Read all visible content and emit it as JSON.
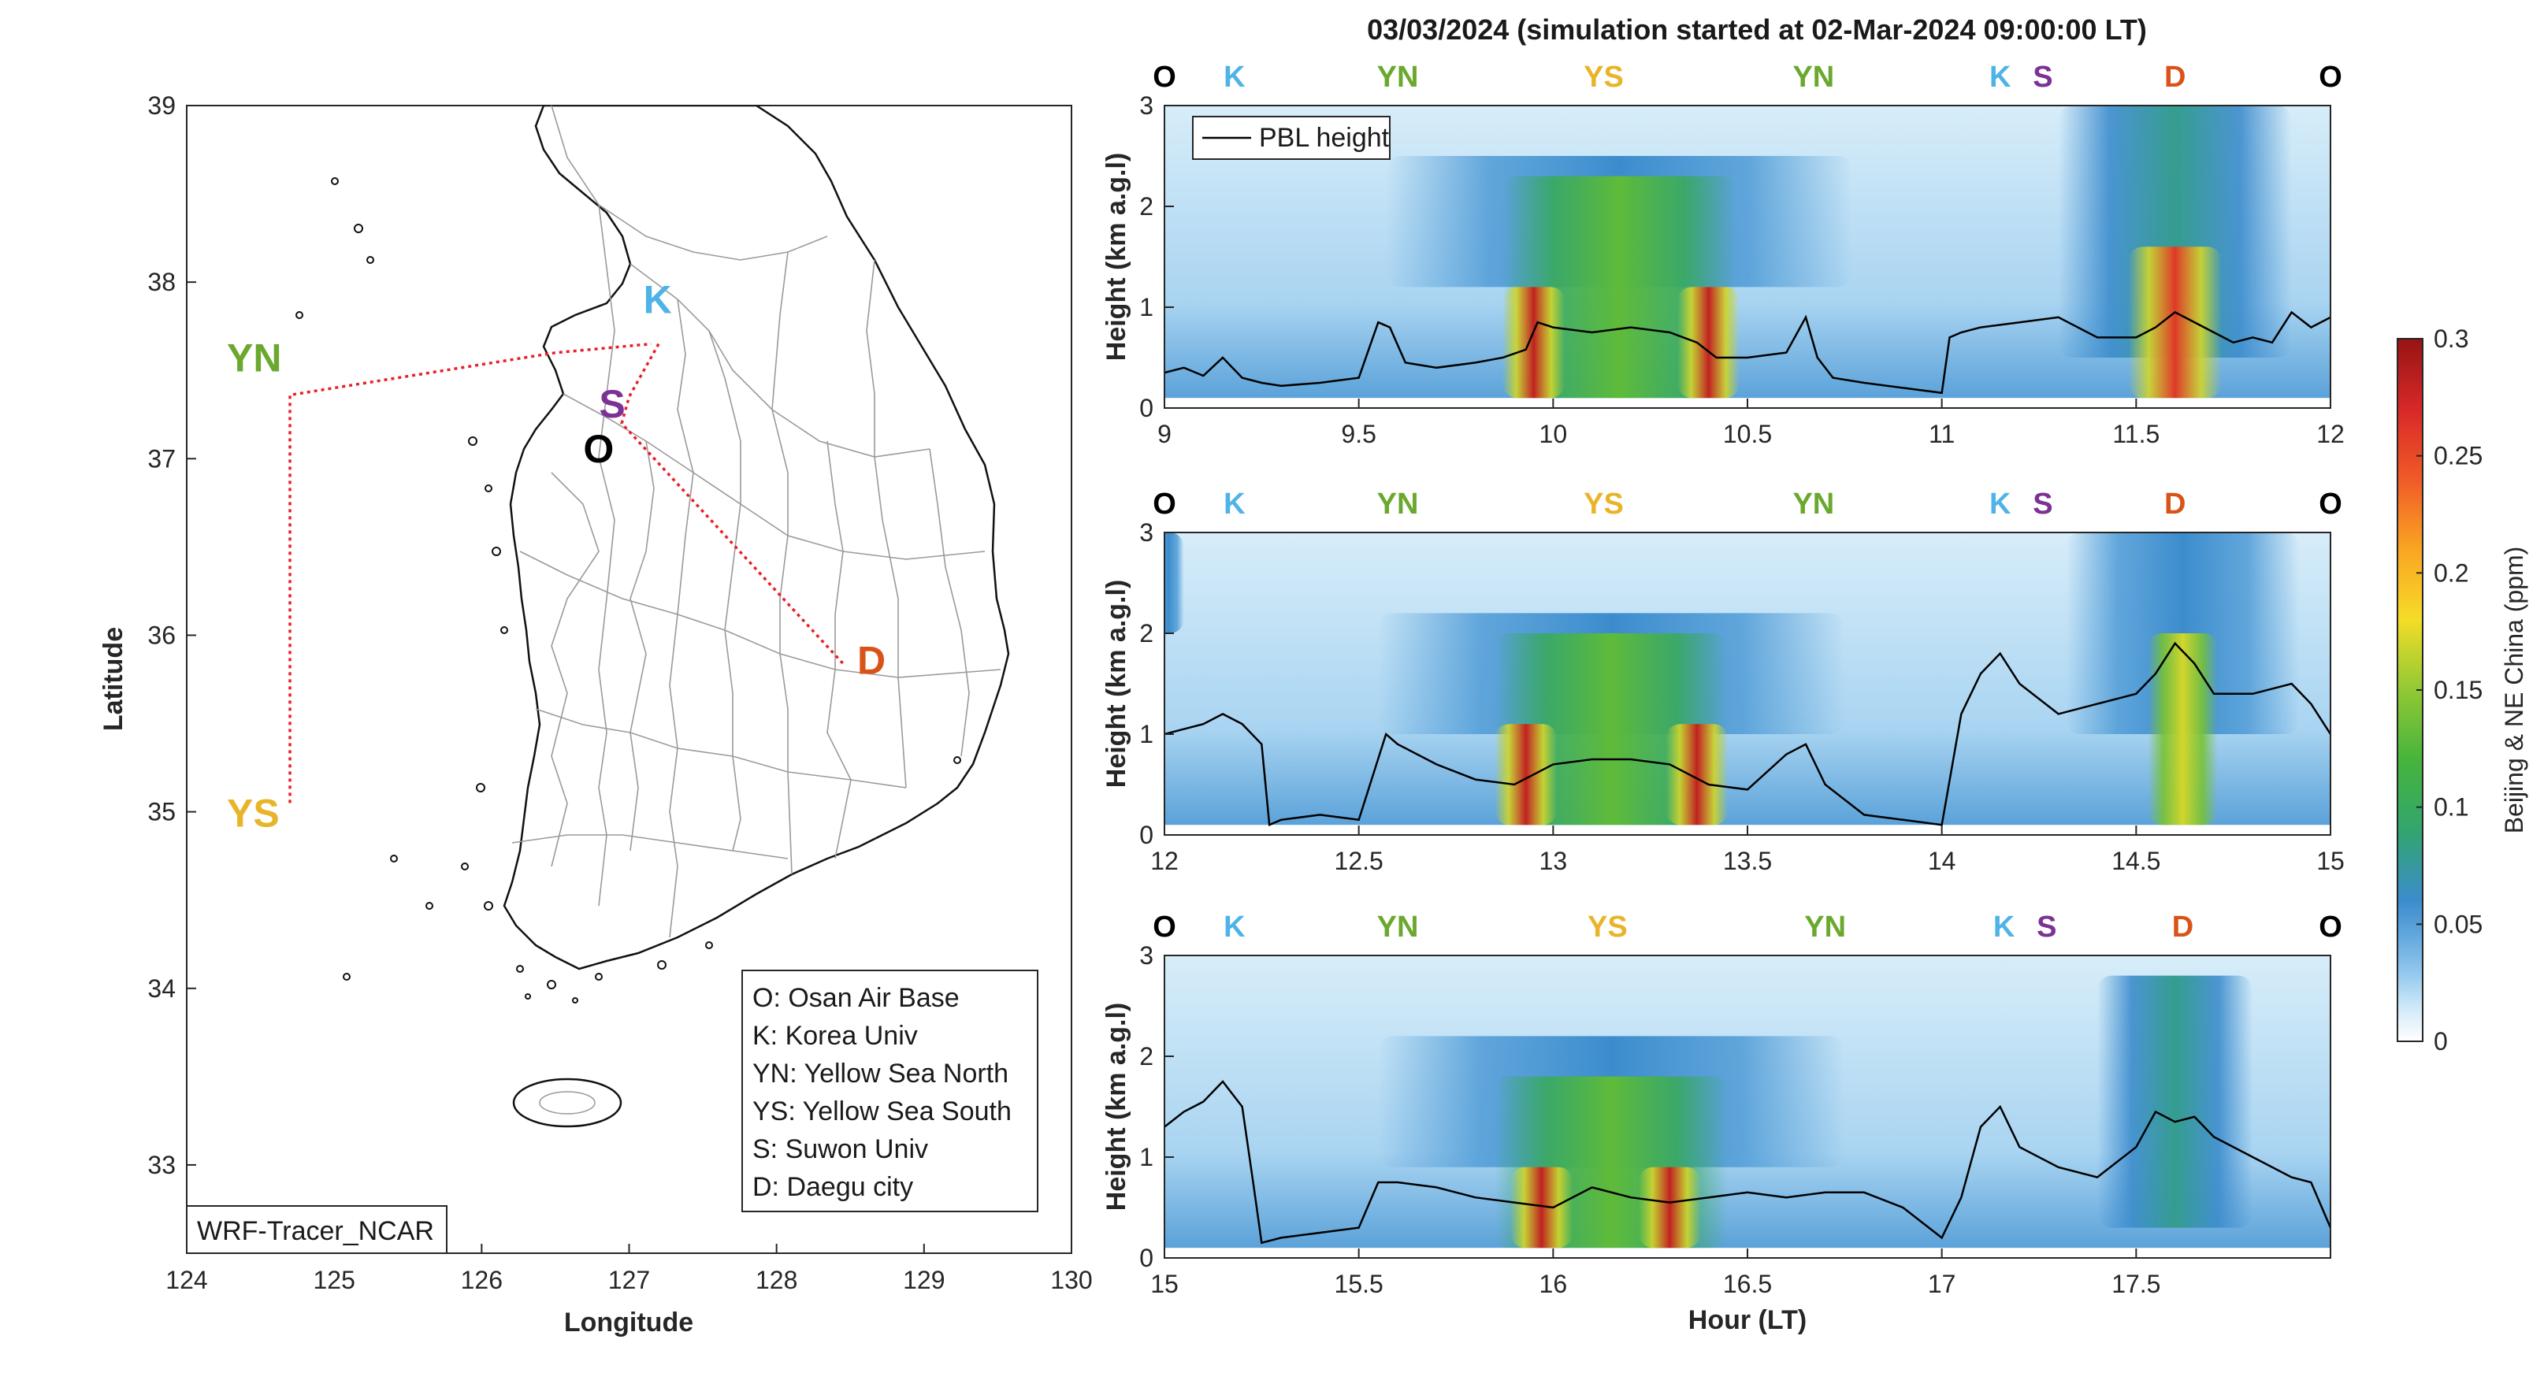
{
  "colors": {
    "O": "#000000",
    "K": "#4eb3e6",
    "YN": "#6aa82e",
    "YS": "#e8b52a",
    "S": "#7b3294",
    "D": "#d95319",
    "track": "#e8202a",
    "pbl": "#000000"
  },
  "figure_title": "03/03/2024 (simulation started at 02-Mar-2024 09:00:00 LT)",
  "map": {
    "xlabel": "Longitude",
    "ylabel": "Latitude",
    "xticks": [
      "124",
      "125",
      "126",
      "127",
      "128",
      "129",
      "130"
    ],
    "yticks": [
      "33",
      "34",
      "35",
      "36",
      "37",
      "38",
      "39"
    ],
    "xlim": [
      124,
      130
    ],
    "ylim": [
      32.5,
      39
    ],
    "model_label": "WRF-Tracer_NCAR",
    "sites": [
      {
        "code": "YN",
        "lon": 124.7,
        "lat": 37.45
      },
      {
        "code": "YS",
        "lon": 124.7,
        "lat": 35.05
      },
      {
        "code": "K",
        "lon": 127.15,
        "lat": 37.78
      },
      {
        "code": "S",
        "lon": 126.93,
        "lat": 37.3
      },
      {
        "code": "O",
        "lon": 126.85,
        "lat": 37.09
      },
      {
        "code": "D",
        "lon": 128.6,
        "lat": 35.87
      }
    ],
    "legend": [
      "O: Osan Air Base",
      "K: Korea Univ",
      "YN: Yellow Sea North",
      "YS: Yellow Sea South",
      "S: Suwon Univ",
      "D: Daegu city"
    ]
  },
  "chart_data": [
    {
      "type": "heatmap",
      "xlabel": "",
      "ylabel": "Height (km a.g.l)",
      "xlim": [
        9,
        12
      ],
      "ylim": [
        0,
        3
      ],
      "xticks": [
        "9",
        "9.5",
        "10",
        "10.5",
        "11",
        "11.5",
        "12"
      ],
      "yticks": [
        "0",
        "1",
        "2",
        "3"
      ],
      "legend": "PBL height",
      "site_markers": [
        {
          "label": "O",
          "x": 9.0
        },
        {
          "label": "K",
          "x": 9.18
        },
        {
          "label": "YN",
          "x": 9.6
        },
        {
          "label": "YS",
          "x": 10.13
        },
        {
          "label": "YN",
          "x": 10.67
        },
        {
          "label": "K",
          "x": 11.15
        },
        {
          "label": "S",
          "x": 11.26
        },
        {
          "label": "D",
          "x": 11.6
        },
        {
          "label": "O",
          "x": 12.0
        }
      ],
      "pbl_height": {
        "x": [
          9.0,
          9.05,
          9.1,
          9.15,
          9.2,
          9.25,
          9.3,
          9.4,
          9.5,
          9.55,
          9.58,
          9.62,
          9.7,
          9.8,
          9.87,
          9.93,
          9.96,
          10.0,
          10.1,
          10.2,
          10.3,
          10.37,
          10.42,
          10.5,
          10.6,
          10.65,
          10.68,
          10.72,
          10.8,
          10.9,
          11.0,
          11.02,
          11.05,
          11.1,
          11.2,
          11.3,
          11.4,
          11.5,
          11.55,
          11.6,
          11.7,
          11.75,
          11.8,
          11.85,
          11.9,
          11.95,
          12.0
        ],
        "y": [
          0.35,
          0.4,
          0.32,
          0.5,
          0.3,
          0.25,
          0.22,
          0.25,
          0.3,
          0.85,
          0.8,
          0.45,
          0.4,
          0.45,
          0.5,
          0.58,
          0.85,
          0.8,
          0.75,
          0.8,
          0.75,
          0.65,
          0.5,
          0.5,
          0.55,
          0.9,
          0.5,
          0.3,
          0.25,
          0.2,
          0.15,
          0.7,
          0.75,
          0.8,
          0.85,
          0.9,
          0.7,
          0.7,
          0.8,
          0.95,
          0.75,
          0.65,
          0.7,
          0.65,
          0.95,
          0.8,
          0.9
        ]
      },
      "blobs": [
        {
          "x": 9.95,
          "w": 0.08,
          "y0": 0.1,
          "y1": 1.2,
          "cmax": 0.28,
          "cmin": 0.17
        },
        {
          "x": 10.4,
          "w": 0.08,
          "y0": 0.1,
          "y1": 1.2,
          "cmax": 0.28,
          "cmin": 0.17
        },
        {
          "x": 10.17,
          "w": 0.3,
          "y0": 0.1,
          "y1": 2.3,
          "cmax": 0.13,
          "cmin": 0.1
        },
        {
          "x": 10.17,
          "w": 0.6,
          "y0": 1.2,
          "y1": 2.5,
          "cmax": 0.06,
          "cmin": 0.05
        },
        {
          "x": 11.6,
          "w": 0.12,
          "y0": 0.1,
          "y1": 1.6,
          "cmax": 0.26,
          "cmin": 0.17
        },
        {
          "x": 11.6,
          "w": 0.3,
          "y0": 0.5,
          "y1": 3.0,
          "cmax": 0.08,
          "cmin": 0.06
        }
      ]
    },
    {
      "type": "heatmap",
      "xlabel": "",
      "ylabel": "Height (km a.g.l)",
      "xlim": [
        12,
        15
      ],
      "ylim": [
        0,
        3
      ],
      "xticks": [
        "12",
        "12.5",
        "13",
        "13.5",
        "14",
        "14.5",
        "15"
      ],
      "yticks": [
        "0",
        "1",
        "2",
        "3"
      ],
      "site_markers": [
        {
          "label": "O",
          "x": 12.0
        },
        {
          "label": "K",
          "x": 12.18
        },
        {
          "label": "YN",
          "x": 12.6
        },
        {
          "label": "YS",
          "x": 13.13
        },
        {
          "label": "YN",
          "x": 13.67
        },
        {
          "label": "K",
          "x": 14.15
        },
        {
          "label": "S",
          "x": 14.26
        },
        {
          "label": "D",
          "x": 14.6
        },
        {
          "label": "O",
          "x": 15.0
        }
      ],
      "pbl_height": {
        "x": [
          12.0,
          12.05,
          12.1,
          12.15,
          12.2,
          12.25,
          12.27,
          12.3,
          12.4,
          12.5,
          12.57,
          12.6,
          12.7,
          12.8,
          12.9,
          13.0,
          13.1,
          13.2,
          13.3,
          13.4,
          13.5,
          13.6,
          13.65,
          13.7,
          13.8,
          13.9,
          14.0,
          14.05,
          14.1,
          14.15,
          14.2,
          14.3,
          14.4,
          14.5,
          14.55,
          14.6,
          14.65,
          14.7,
          14.8,
          14.9,
          14.95,
          15.0
        ],
        "y": [
          1.0,
          1.05,
          1.1,
          1.2,
          1.1,
          0.9,
          0.1,
          0.15,
          0.2,
          0.15,
          1.0,
          0.9,
          0.7,
          0.55,
          0.5,
          0.7,
          0.75,
          0.75,
          0.7,
          0.5,
          0.45,
          0.8,
          0.9,
          0.5,
          0.2,
          0.15,
          0.1,
          1.2,
          1.6,
          1.8,
          1.5,
          1.2,
          1.3,
          1.4,
          1.6,
          1.9,
          1.7,
          1.4,
          1.4,
          1.5,
          1.3,
          1.0
        ]
      },
      "blobs": [
        {
          "x": 12.93,
          "w": 0.08,
          "y0": 0.1,
          "y1": 1.1,
          "cmax": 0.28,
          "cmin": 0.17
        },
        {
          "x": 13.37,
          "w": 0.08,
          "y0": 0.1,
          "y1": 1.1,
          "cmax": 0.28,
          "cmin": 0.17
        },
        {
          "x": 13.15,
          "w": 0.3,
          "y0": 0.1,
          "y1": 2.0,
          "cmax": 0.13,
          "cmin": 0.1
        },
        {
          "x": 13.15,
          "w": 0.6,
          "y0": 1.0,
          "y1": 2.2,
          "cmax": 0.06,
          "cmin": 0.05
        },
        {
          "x": 14.62,
          "w": 0.09,
          "y0": 0.1,
          "y1": 2.0,
          "cmax": 0.17,
          "cmin": 0.14
        },
        {
          "x": 14.62,
          "w": 0.3,
          "y0": 1.0,
          "y1": 3.0,
          "cmax": 0.06,
          "cmin": 0.05
        },
        {
          "x": 12.01,
          "w": 0.04,
          "y0": 2.0,
          "y1": 3.0,
          "cmax": 0.06,
          "cmin": 0.05
        }
      ]
    },
    {
      "type": "heatmap",
      "xlabel": "Hour (LT)",
      "ylabel": "Height (km a.g.l)",
      "xlim": [
        15,
        18
      ],
      "ylim": [
        0,
        3
      ],
      "xticks": [
        "15",
        "15.5",
        "16",
        "16.5",
        "17",
        "17.5"
      ],
      "yticks": [
        "0",
        "1",
        "2",
        "3"
      ],
      "site_markers": [
        {
          "label": "O",
          "x": 15.0
        },
        {
          "label": "K",
          "x": 15.18
        },
        {
          "label": "YN",
          "x": 15.6
        },
        {
          "label": "YS",
          "x": 16.14
        },
        {
          "label": "YN",
          "x": 16.7
        },
        {
          "label": "K",
          "x": 17.16
        },
        {
          "label": "S",
          "x": 17.27
        },
        {
          "label": "D",
          "x": 17.62
        },
        {
          "label": "O",
          "x": 18.0
        }
      ],
      "pbl_height": {
        "x": [
          15.0,
          15.05,
          15.1,
          15.15,
          15.2,
          15.23,
          15.25,
          15.3,
          15.4,
          15.5,
          15.55,
          15.6,
          15.7,
          15.8,
          15.9,
          16.0,
          16.1,
          16.2,
          16.3,
          16.4,
          16.5,
          16.6,
          16.7,
          16.8,
          16.9,
          17.0,
          17.05,
          17.1,
          17.15,
          17.2,
          17.3,
          17.4,
          17.5,
          17.55,
          17.6,
          17.65,
          17.7,
          17.8,
          17.9,
          17.95,
          18.0
        ],
        "y": [
          1.3,
          1.45,
          1.55,
          1.75,
          1.5,
          0.7,
          0.15,
          0.2,
          0.25,
          0.3,
          0.75,
          0.75,
          0.7,
          0.6,
          0.55,
          0.5,
          0.7,
          0.6,
          0.55,
          0.6,
          0.65,
          0.6,
          0.65,
          0.65,
          0.5,
          0.2,
          0.6,
          1.3,
          1.5,
          1.1,
          0.9,
          0.8,
          1.1,
          1.45,
          1.35,
          1.4,
          1.2,
          1.0,
          0.8,
          0.75,
          0.3
        ]
      },
      "blobs": [
        {
          "x": 15.97,
          "w": 0.08,
          "y0": 0.1,
          "y1": 0.9,
          "cmax": 0.28,
          "cmin": 0.17
        },
        {
          "x": 16.3,
          "w": 0.08,
          "y0": 0.1,
          "y1": 0.9,
          "cmax": 0.28,
          "cmin": 0.17
        },
        {
          "x": 16.15,
          "w": 0.3,
          "y0": 0.1,
          "y1": 1.8,
          "cmax": 0.13,
          "cmin": 0.1
        },
        {
          "x": 16.15,
          "w": 0.6,
          "y0": 0.9,
          "y1": 2.2,
          "cmax": 0.06,
          "cmin": 0.05
        },
        {
          "x": 17.6,
          "w": 0.2,
          "y0": 0.3,
          "y1": 2.8,
          "cmax": 0.08,
          "cmin": 0.06
        }
      ]
    }
  ],
  "colorbar": {
    "label": "Beijing & NE China (ppm)",
    "ticks": [
      "0",
      "0.05",
      "0.1",
      "0.15",
      "0.2",
      "0.25",
      "0.3"
    ],
    "range": [
      0,
      0.3
    ]
  }
}
